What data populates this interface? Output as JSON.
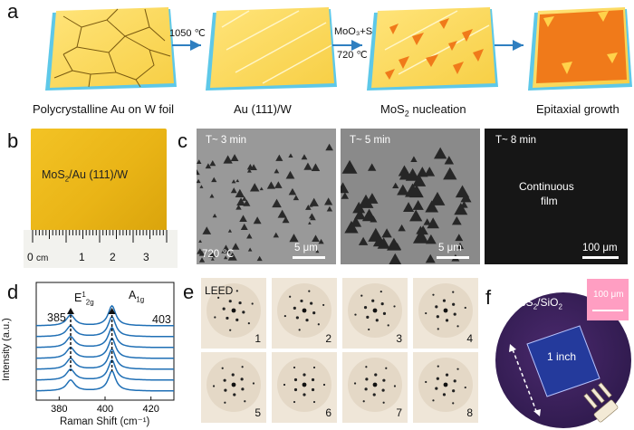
{
  "panels": {
    "a": {
      "label": "a",
      "steps": [
        {
          "caption": "Polycrystalline Au on W foil"
        },
        {
          "caption": "Au (111)/W"
        },
        {
          "caption_main": "MoS",
          "caption_sub": "2",
          "caption_rest": " nucleation"
        },
        {
          "caption": "Epitaxial growth"
        }
      ],
      "arrows": [
        {
          "top": "1050 ℃",
          "bottom": ""
        },
        {
          "top": "MoO₃+S",
          "bottom": "720 ℃"
        },
        {
          "top": "",
          "bottom": ""
        }
      ]
    },
    "b": {
      "label": "b",
      "sample_main": "MoS",
      "sample_sub": "2",
      "sample_rest": "/Au (111)/W",
      "ruler_unit": "cm",
      "ruler_ticks": [
        "0",
        "1",
        "2",
        "3"
      ]
    },
    "c": {
      "label": "c",
      "images": [
        {
          "time": "T~ 3 min",
          "temp": "720 ℃",
          "scale": "5 μm"
        },
        {
          "time": "T~ 5 min",
          "scale": "5 μm"
        },
        {
          "time": "T~ 8 min",
          "overlay_line1": "Continuous",
          "overlay_line2": "film",
          "scale": "100 μm"
        }
      ]
    },
    "d": {
      "label": "d"
    },
    "e": {
      "label": "e",
      "title": "LEED",
      "patterns": [
        "1",
        "2",
        "3",
        "4",
        "5",
        "6",
        "7",
        "8"
      ]
    },
    "f": {
      "label": "f",
      "title_main": "MoS",
      "title_sub": "2",
      "title_rest": "/SiO",
      "title_sub2": "2",
      "inset_scale": "100 μm",
      "size_label": "1 inch"
    }
  },
  "chart_data": {
    "type": "line",
    "title": "",
    "xlabel": "Raman Shift (cm⁻¹)",
    "ylabel": "Intensity (a.u.)",
    "xlim": [
      370,
      430
    ],
    "xticks": [
      380,
      400,
      420
    ],
    "peaks": [
      {
        "name": "E¹₂g",
        "position": 385,
        "label": "385"
      },
      {
        "name": "A₁g",
        "position": 403,
        "label": "403"
      }
    ],
    "series_count": 7,
    "color": "#1f6fb5",
    "note": "seven vertically offset Raman spectra with peaks at 385 and 403 cm⁻¹"
  }
}
